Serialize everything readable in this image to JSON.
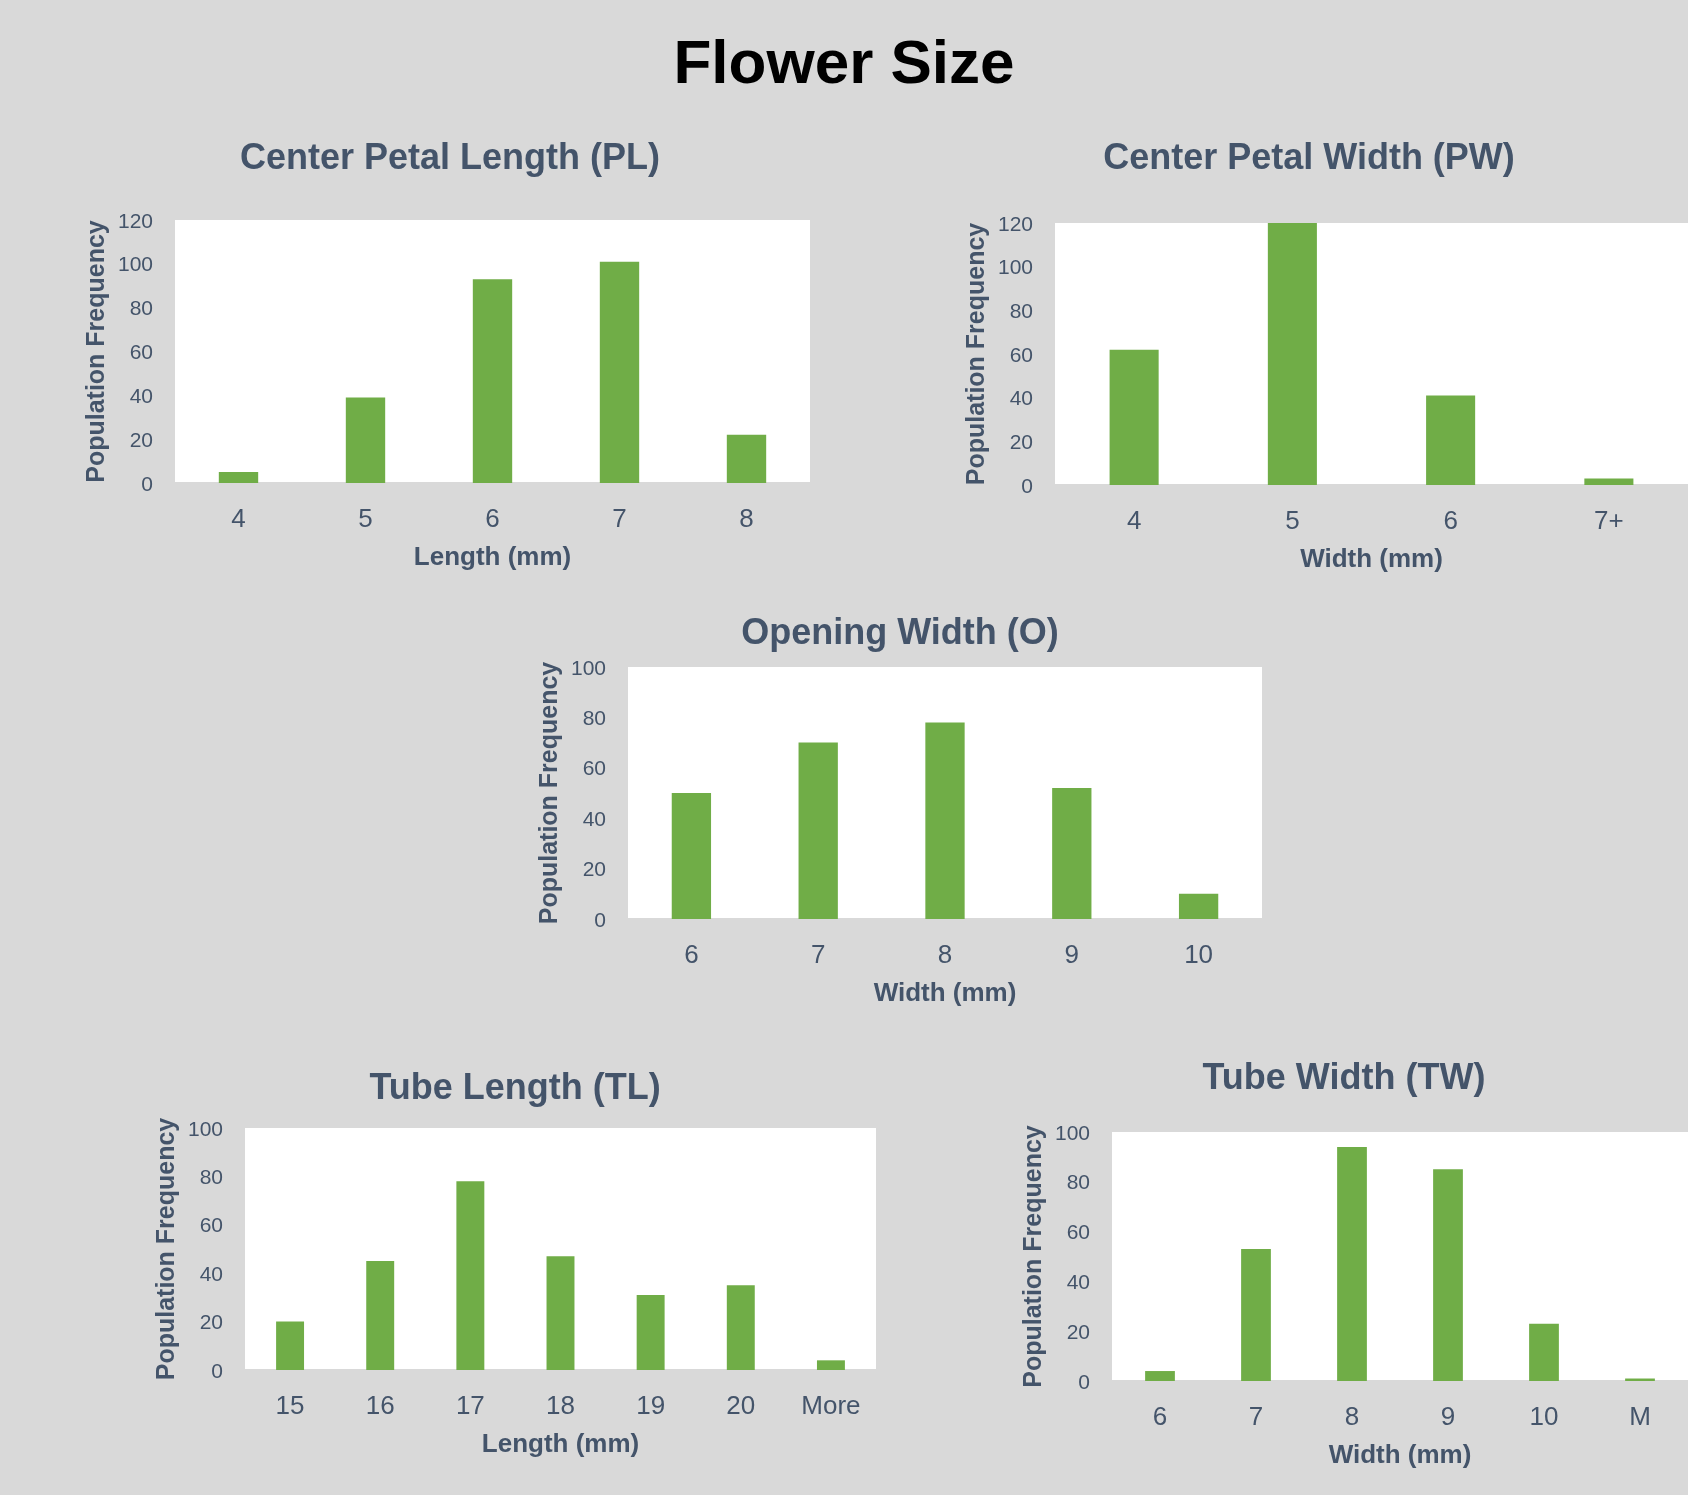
{
  "chart_data": [
    {
      "type": "other",
      "title": "Flower Size"
    },
    {
      "type": "bar",
      "title": "Center Petal Length (PL)",
      "xlabel": "Length (mm)",
      "ylabel": "Population Frequency",
      "categories": [
        "4",
        "5",
        "6",
        "7",
        "8"
      ],
      "values": [
        5,
        39,
        93,
        101,
        22
      ],
      "color": "#70ad47",
      "ylim": [
        0,
        120
      ],
      "yticks": [
        0,
        20,
        40,
        60,
        80,
        100,
        120
      ]
    },
    {
      "type": "bar",
      "title": "Center Petal Width (PW)",
      "xlabel": "Width (mm)",
      "ylabel": "Population Frequency",
      "categories": [
        "4",
        "5",
        "6",
        "7+"
      ],
      "values": [
        62,
        120,
        41,
        3
      ],
      "color": "#70ad47",
      "ylim": [
        0,
        120
      ],
      "yticks": [
        0,
        20,
        40,
        60,
        80,
        100,
        120
      ]
    },
    {
      "type": "bar",
      "title": "Opening Width (O)",
      "xlabel": "Width (mm)",
      "ylabel": "Population Frequency",
      "categories": [
        "6",
        "7",
        "8",
        "9",
        "10"
      ],
      "values": [
        50,
        70,
        78,
        52,
        10
      ],
      "color": "#70ad47",
      "ylim": [
        0,
        100
      ],
      "yticks": [
        0,
        20,
        40,
        60,
        80,
        100
      ]
    },
    {
      "type": "bar",
      "title": "Tube Length (TL)",
      "xlabel": "Length (mm)",
      "ylabel": "Population Frequency",
      "categories": [
        "15",
        "16",
        "17",
        "18",
        "19",
        "20",
        "More"
      ],
      "values": [
        20,
        45,
        78,
        47,
        31,
        35,
        4
      ],
      "color": "#70ad47",
      "ylim": [
        0,
        100
      ],
      "yticks": [
        0,
        20,
        40,
        60,
        80,
        100
      ]
    },
    {
      "type": "bar",
      "title": "Tube Width (TW)",
      "xlabel": "Width (mm)",
      "ylabel": "Population Frequency",
      "categories": [
        "6",
        "7",
        "8",
        "9",
        "10",
        "M"
      ],
      "values": [
        4,
        53,
        94,
        85,
        23,
        1
      ],
      "color": "#70ad47",
      "ylim": [
        0,
        100
      ],
      "yticks": [
        0,
        20,
        40,
        60,
        80,
        100
      ]
    }
  ]
}
